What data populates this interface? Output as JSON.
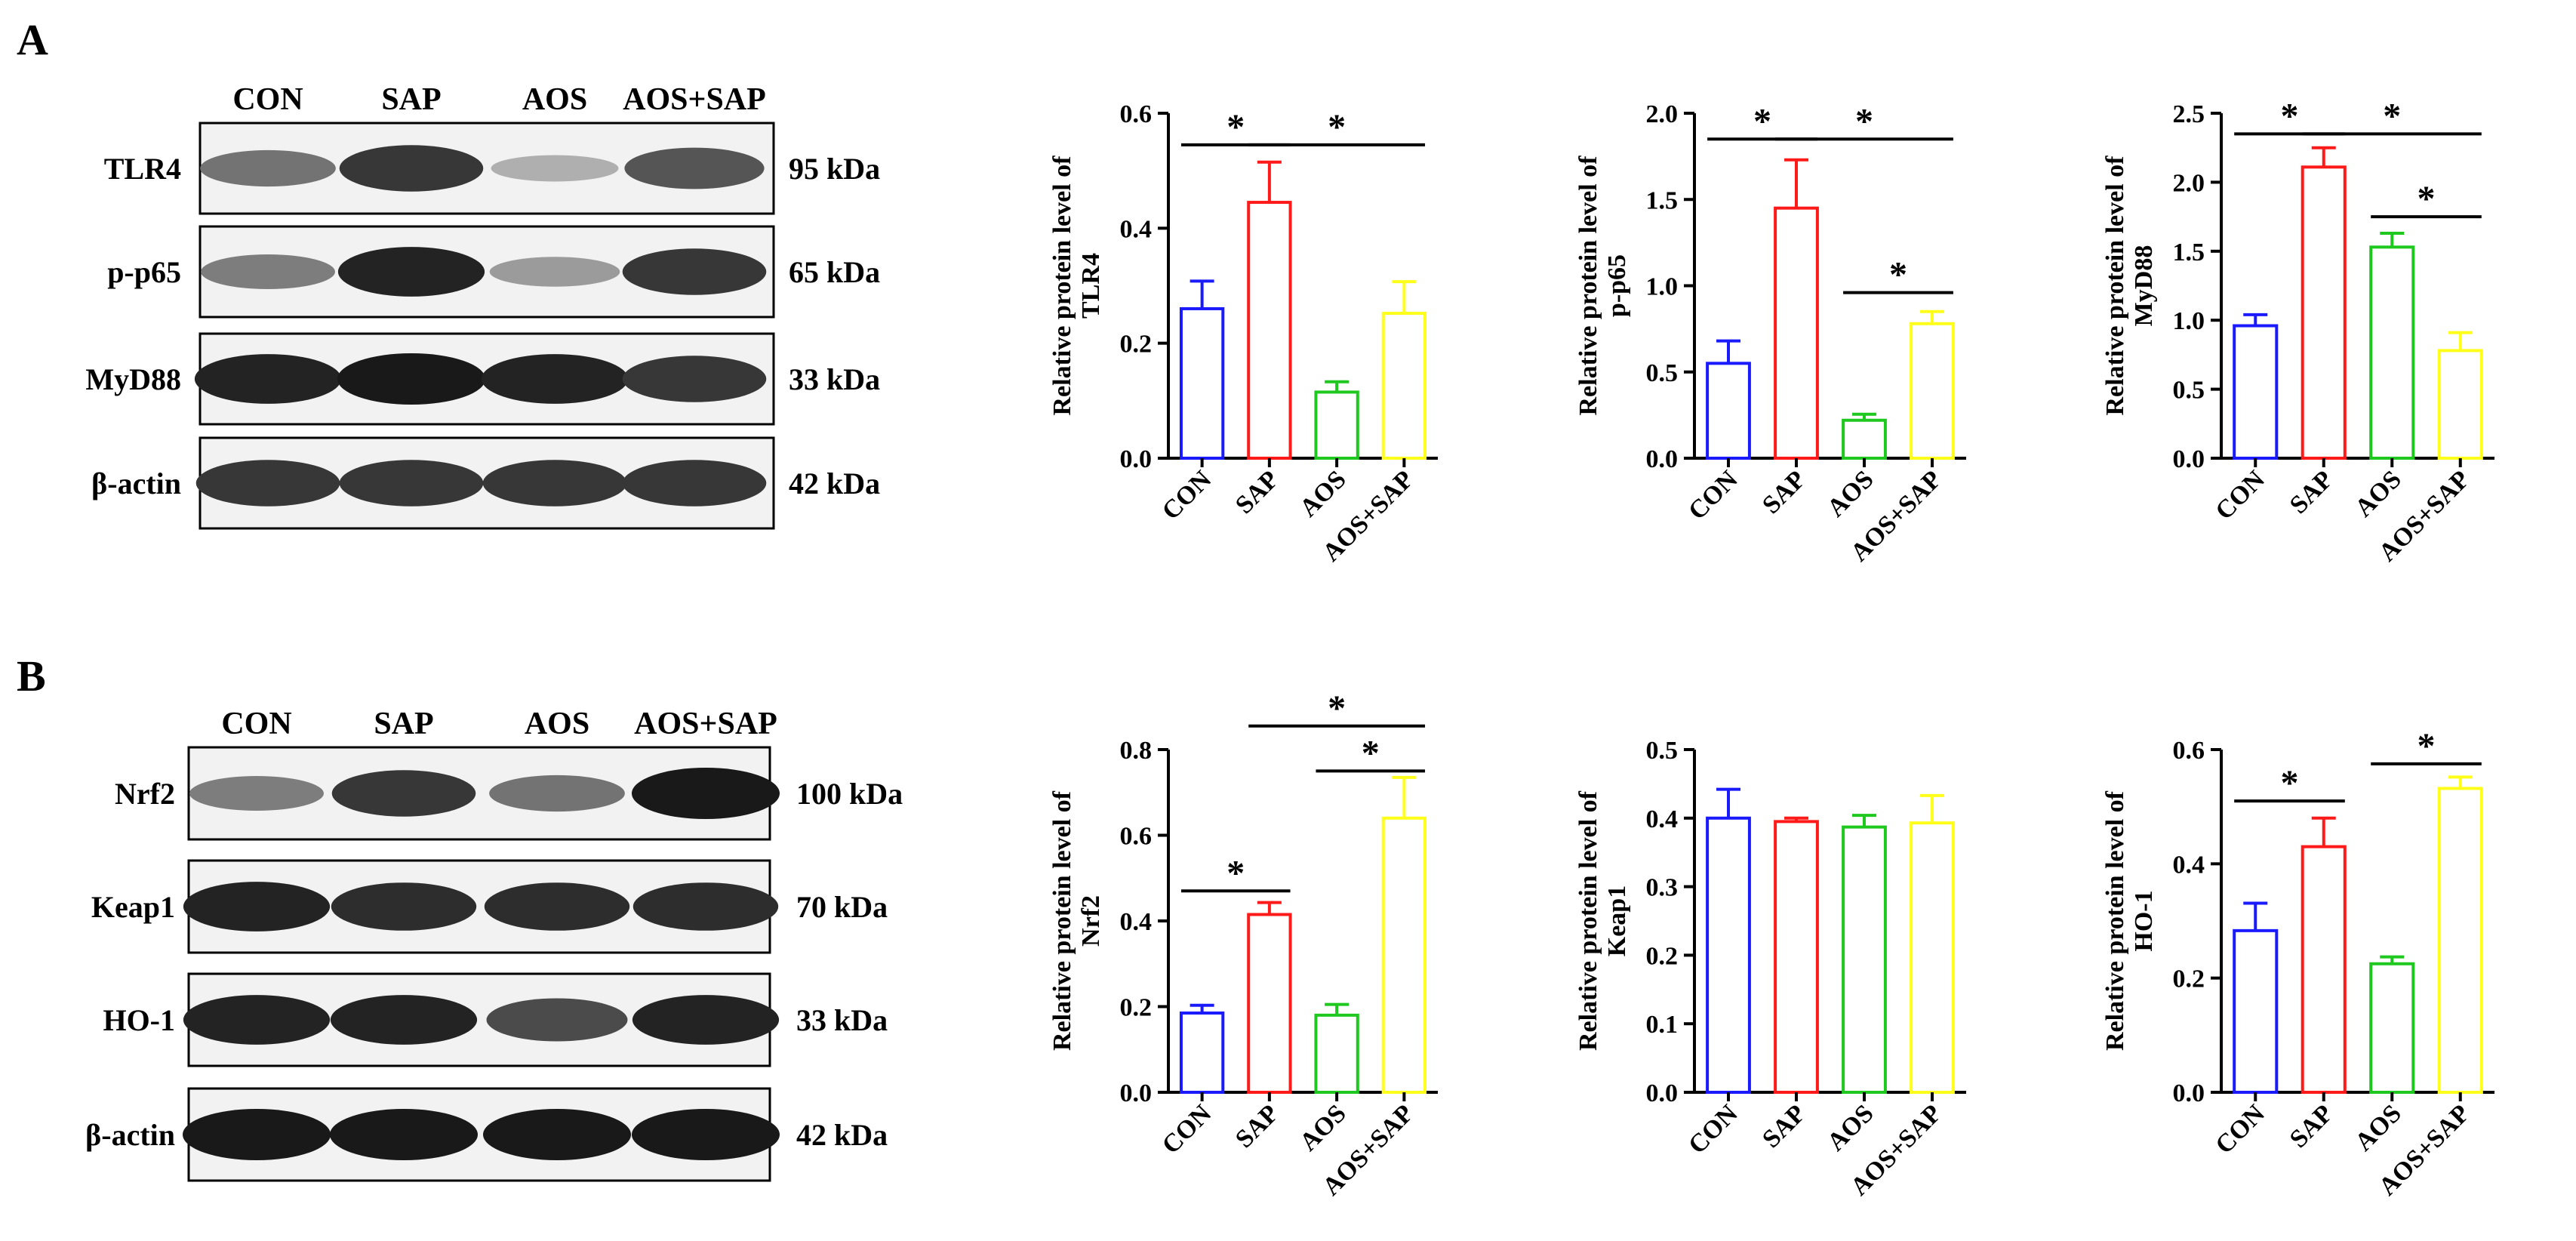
{
  "panels": [
    {
      "letter": "A",
      "lane_labels": [
        "CON",
        "SAP",
        "AOS",
        "AOS+SAP"
      ],
      "blots": [
        {
          "name": "TLR4",
          "kda": "95 kDa",
          "intensity": [
            0.55,
            0.85,
            0.25,
            0.7
          ]
        },
        {
          "name": "p-p65",
          "kda": "65 kDa",
          "intensity": [
            0.5,
            0.95,
            0.35,
            0.85
          ]
        },
        {
          "name": "MyD88",
          "kda": "33 kDa",
          "intensity": [
            0.95,
            1.0,
            0.95,
            0.85
          ]
        },
        {
          "name": "β-actin",
          "kda": "42 kDa",
          "intensity": [
            0.85,
            0.85,
            0.85,
            0.85
          ]
        }
      ]
    },
    {
      "letter": "B",
      "lane_labels": [
        "CON",
        "SAP",
        "AOS",
        "AOS+SAP"
      ],
      "blots": [
        {
          "name": "Nrf2",
          "kda": "100 kDa",
          "intensity": [
            0.5,
            0.85,
            0.55,
            1.0
          ]
        },
        {
          "name": "Keap1",
          "kda": "70 kDa",
          "intensity": [
            0.95,
            0.9,
            0.9,
            0.9
          ]
        },
        {
          "name": "HO-1",
          "kda": "33 kDa",
          "intensity": [
            0.95,
            0.95,
            0.75,
            0.95
          ]
        },
        {
          "name": "β-actin",
          "kda": "42 kDa",
          "intensity": [
            1.0,
            1.0,
            1.0,
            1.0
          ]
        }
      ]
    }
  ],
  "series_colors": [
    "#1a1aff",
    "#ff1a1a",
    "#1ec81e",
    "#ffff1a"
  ],
  "chart_data": [
    {
      "type": "bar",
      "ylabel_lines": [
        "Relative protein level of",
        "TLR4"
      ],
      "categories": [
        "CON",
        "SAP",
        "AOS",
        "AOS+SAP"
      ],
      "values": [
        0.26,
        0.445,
        0.115,
        0.252
      ],
      "errors": [
        0.048,
        0.07,
        0.018,
        0.055
      ],
      "ylim": [
        0,
        0.6
      ],
      "yticks": [
        "0.0",
        "0.2",
        "0.4",
        "0.6"
      ],
      "significance": [
        {
          "from": 0,
          "to": 1,
          "y": 0.545,
          "label": "*"
        },
        {
          "from": 1,
          "to": 3,
          "y": 0.545,
          "label": "*"
        }
      ]
    },
    {
      "type": "bar",
      "ylabel_lines": [
        "Relative protein level of",
        "p-p65"
      ],
      "categories": [
        "CON",
        "SAP",
        "AOS",
        "AOS+SAP"
      ],
      "values": [
        0.55,
        1.45,
        0.22,
        0.78
      ],
      "errors": [
        0.13,
        0.28,
        0.035,
        0.07
      ],
      "ylim": [
        0,
        2.0
      ],
      "yticks": [
        "0.0",
        "0.5",
        "1.0",
        "1.5",
        "2.0"
      ],
      "significance": [
        {
          "from": 0,
          "to": 1,
          "y": 1.85,
          "label": "*"
        },
        {
          "from": 1,
          "to": 3,
          "y": 1.85,
          "label": "*"
        },
        {
          "from": 2,
          "to": 3,
          "y": 0.96,
          "label": "*"
        }
      ]
    },
    {
      "type": "bar",
      "ylabel_lines": [
        "Relative protein level of",
        "MyD88"
      ],
      "categories": [
        "CON",
        "SAP",
        "AOS",
        "AOS+SAP"
      ],
      "values": [
        0.96,
        2.11,
        1.53,
        0.78
      ],
      "errors": [
        0.08,
        0.14,
        0.1,
        0.13
      ],
      "ylim": [
        0,
        2.5
      ],
      "yticks": [
        "0.0",
        "0.5",
        "1.0",
        "1.5",
        "2.0",
        "2.5"
      ],
      "significance": [
        {
          "from": 0,
          "to": 1,
          "y": 2.35,
          "label": "*"
        },
        {
          "from": 1,
          "to": 3,
          "y": 2.35,
          "label": "*"
        },
        {
          "from": 2,
          "to": 3,
          "y": 1.75,
          "label": "*"
        }
      ]
    },
    {
      "type": "bar",
      "ylabel_lines": [
        "Relative protein level of",
        "Nrf2"
      ],
      "categories": [
        "CON",
        "SAP",
        "AOS",
        "AOS+SAP"
      ],
      "values": [
        0.185,
        0.415,
        0.18,
        0.64
      ],
      "errors": [
        0.018,
        0.028,
        0.025,
        0.095
      ],
      "ylim": [
        0,
        0.8
      ],
      "yticks": [
        "0.0",
        "0.2",
        "0.4",
        "0.6",
        "0.8"
      ],
      "significance": [
        {
          "from": 0,
          "to": 1,
          "y": 0.47,
          "label": "*"
        },
        {
          "from": 2,
          "to": 3,
          "y": 0.75,
          "label": "*"
        },
        {
          "from": 1,
          "to": 3,
          "y": 0.855,
          "label": "*"
        }
      ]
    },
    {
      "type": "bar",
      "ylabel_lines": [
        "Relative protein level of",
        "Keap1"
      ],
      "categories": [
        "CON",
        "SAP",
        "AOS",
        "AOS+SAP"
      ],
      "values": [
        0.4,
        0.395,
        0.387,
        0.393
      ],
      "errors": [
        0.042,
        0.005,
        0.017,
        0.04
      ],
      "ylim": [
        0,
        0.5
      ],
      "yticks": [
        "0.0",
        "0.1",
        "0.2",
        "0.3",
        "0.4",
        "0.5"
      ],
      "significance": []
    },
    {
      "type": "bar",
      "ylabel_lines": [
        "Relative protein level of",
        "HO-1"
      ],
      "categories": [
        "CON",
        "SAP",
        "AOS",
        "AOS+SAP"
      ],
      "values": [
        0.283,
        0.43,
        0.225,
        0.532
      ],
      "errors": [
        0.048,
        0.05,
        0.012,
        0.02
      ],
      "ylim": [
        0,
        0.6
      ],
      "yticks": [
        "0.0",
        "0.2",
        "0.4",
        "0.6"
      ],
      "significance": [
        {
          "from": 0,
          "to": 1,
          "y": 0.51,
          "label": "*"
        },
        {
          "from": 2,
          "to": 3,
          "y": 0.575,
          "label": "*"
        }
      ]
    }
  ]
}
